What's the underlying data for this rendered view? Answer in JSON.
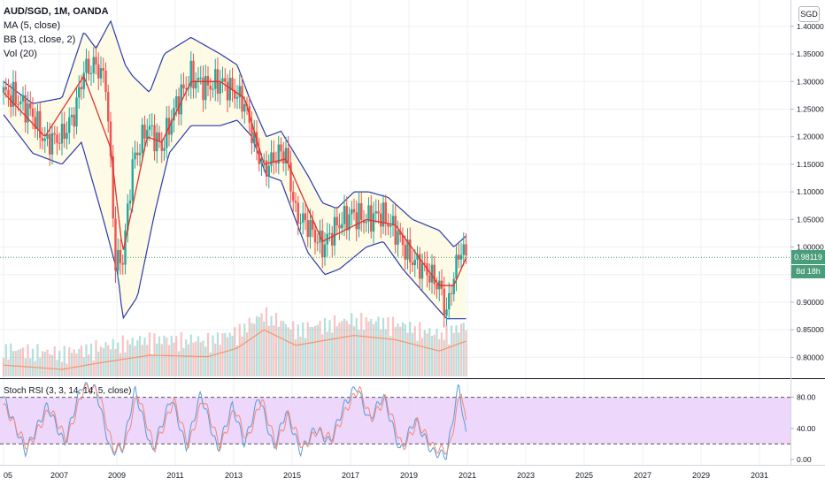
{
  "legend": {
    "symbol": "AUD/SGD, 1M, OANDA",
    "ma": "MA (5, close)",
    "bb": "BB (13, close, 2)",
    "vol": "Vol (20)"
  },
  "currency_badge": "SGD",
  "last_price": "0.98119",
  "countdown": "8d 18h",
  "rsi": {
    "label": "Stoch RSI (3, 3, 14, 14, 5, close)",
    "ticks": [
      "80.00",
      "40.00",
      "0.00"
    ]
  },
  "colors": {
    "up": "#26a69a",
    "down": "#ef5350",
    "bb_line": "#2b3ba8",
    "bb_fill": "#fdfae6",
    "ma_line": "#e0322b",
    "rsi_fill": "#e9cdfa",
    "stoch_k": "#5b9bd5",
    "stoch_d": "#f08a7a",
    "tag": "#4a9d7a"
  },
  "chart_data": {
    "type": "candlestick",
    "title": "AUD/SGD, 1M, OANDA",
    "x_ticks": [
      "05",
      "2007",
      "2009",
      "2011",
      "2013",
      "2015",
      "2017",
      "2019",
      "2021",
      "2023",
      "2025",
      "2027",
      "2029",
      "2031"
    ],
    "y_ticks": [
      "1.40000",
      "1.35000",
      "1.30000",
      "1.25000",
      "1.20000",
      "1.15000",
      "1.10000",
      "1.05000",
      "1.00000",
      "0.95000",
      "0.90000",
      "0.85000",
      "0.80000"
    ],
    "ylim": [
      0.775,
      1.435
    ],
    "price_path": [
      [
        "2005-01",
        1.28
      ],
      [
        "2005-06",
        1.27
      ],
      [
        "2006-01",
        1.24
      ],
      [
        "2006-06",
        1.19
      ],
      [
        "2007-01",
        1.2
      ],
      [
        "2007-06",
        1.24
      ],
      [
        "2007-10",
        1.32
      ],
      [
        "2008-03",
        1.33
      ],
      [
        "2008-07",
        1.3
      ],
      [
        "2008-09",
        1.15
      ],
      [
        "2008-11",
        0.97
      ],
      [
        "2009-02",
        0.98
      ],
      [
        "2009-06",
        1.15
      ],
      [
        "2009-12",
        1.22
      ],
      [
        "2010-06",
        1.18
      ],
      [
        "2010-12",
        1.26
      ],
      [
        "2011-06",
        1.31
      ],
      [
        "2011-12",
        1.29
      ],
      [
        "2012-06",
        1.3
      ],
      [
        "2012-12",
        1.28
      ],
      [
        "2013-04",
        1.26
      ],
      [
        "2013-08",
        1.19
      ],
      [
        "2013-12",
        1.14
      ],
      [
        "2014-06",
        1.17
      ],
      [
        "2014-09",
        1.17
      ],
      [
        "2015-01",
        1.06
      ],
      [
        "2015-06",
        1.04
      ],
      [
        "2015-12",
        1.0
      ],
      [
        "2016-06",
        1.04
      ],
      [
        "2016-12",
        1.06
      ],
      [
        "2017-06",
        1.05
      ],
      [
        "2017-12",
        1.06
      ],
      [
        "2018-06",
        1.03
      ],
      [
        "2018-12",
        0.98
      ],
      [
        "2019-06",
        0.96
      ],
      [
        "2019-12",
        0.93
      ],
      [
        "2020-03",
        0.88
      ],
      [
        "2020-06",
        0.95
      ],
      [
        "2020-09",
        1.0
      ],
      [
        "2020-11",
        0.98
      ]
    ],
    "bb_upper": [
      [
        "2005-01",
        1.3
      ],
      [
        "2006-01",
        1.26
      ],
      [
        "2007-01",
        1.27
      ],
      [
        "2007-10",
        1.39
      ],
      [
        "2008-03",
        1.36
      ],
      [
        "2008-09",
        1.41
      ],
      [
        "2009-03",
        1.33
      ],
      [
        "2009-06",
        1.31
      ],
      [
        "2010-01",
        1.28
      ],
      [
        "2010-07",
        1.35
      ],
      [
        "2011-06",
        1.38
      ],
      [
        "2012-06",
        1.35
      ],
      [
        "2013-01",
        1.33
      ],
      [
        "2013-06",
        1.27
      ],
      [
        "2014-01",
        1.2
      ],
      [
        "2014-07",
        1.21
      ],
      [
        "2015-06",
        1.13
      ],
      [
        "2015-12",
        1.08
      ],
      [
        "2016-06",
        1.07
      ],
      [
        "2017-01",
        1.1
      ],
      [
        "2017-07",
        1.1
      ],
      [
        "2018-03",
        1.09
      ],
      [
        "2019-01",
        1.05
      ],
      [
        "2019-12",
        1.03
      ],
      [
        "2020-06",
        1.0
      ],
      [
        "2020-11",
        1.02
      ]
    ],
    "bb_lower": [
      [
        "2005-01",
        1.24
      ],
      [
        "2006-01",
        1.17
      ],
      [
        "2007-01",
        1.15
      ],
      [
        "2007-09",
        1.19
      ],
      [
        "2008-06",
        1.05
      ],
      [
        "2008-12",
        0.95
      ],
      [
        "2009-02",
        0.87
      ],
      [
        "2009-08",
        0.91
      ],
      [
        "2010-03",
        1.06
      ],
      [
        "2010-09",
        1.17
      ],
      [
        "2011-06",
        1.22
      ],
      [
        "2012-06",
        1.22
      ],
      [
        "2013-01",
        1.23
      ],
      [
        "2013-07",
        1.2
      ],
      [
        "2014-01",
        1.13
      ],
      [
        "2014-07",
        1.12
      ],
      [
        "2015-06",
        0.99
      ],
      [
        "2016-01",
        0.95
      ],
      [
        "2016-07",
        0.96
      ],
      [
        "2017-06",
        1.0
      ],
      [
        "2018-01",
        1.01
      ],
      [
        "2018-09",
        0.96
      ],
      [
        "2019-09",
        0.9
      ],
      [
        "2020-03",
        0.87
      ],
      [
        "2020-11",
        0.87
      ]
    ],
    "ma": [
      [
        "2005-01",
        1.28
      ],
      [
        "2006-06",
        1.2
      ],
      [
        "2007-10",
        1.31
      ],
      [
        "2008-09",
        1.18
      ],
      [
        "2009-02",
        0.99
      ],
      [
        "2009-12",
        1.2
      ],
      [
        "2010-06",
        1.19
      ],
      [
        "2011-06",
        1.3
      ],
      [
        "2012-06",
        1.3
      ],
      [
        "2013-04",
        1.27
      ],
      [
        "2013-12",
        1.15
      ],
      [
        "2014-09",
        1.16
      ],
      [
        "2015-12",
        1.01
      ],
      [
        "2017-06",
        1.05
      ],
      [
        "2018-06",
        1.04
      ],
      [
        "2019-12",
        0.93
      ],
      [
        "2020-06",
        0.93
      ],
      [
        "2020-11",
        0.98
      ]
    ],
    "volume_line": [
      [
        "2005-01",
        0.08
      ],
      [
        "2007-01",
        0.05
      ],
      [
        "2008-06",
        0.1
      ],
      [
        "2010-01",
        0.15
      ],
      [
        "2012-01",
        0.14
      ],
      [
        "2013-01",
        0.2
      ],
      [
        "2013-12",
        0.33
      ],
      [
        "2015-01",
        0.22
      ],
      [
        "2017-01",
        0.29
      ],
      [
        "2018-06",
        0.26
      ],
      [
        "2019-12",
        0.18
      ],
      [
        "2020-11",
        0.25
      ]
    ],
    "stoch_k": [
      [
        "2005-01",
        80
      ],
      [
        "2005-10",
        10
      ],
      [
        "2006-07",
        70
      ],
      [
        "2007-02",
        20
      ],
      [
        "2007-09",
        95
      ],
      [
        "2008-03",
        90
      ],
      [
        "2008-09",
        10
      ],
      [
        "2009-02",
        15
      ],
      [
        "2009-07",
        90
      ],
      [
        "2010-02",
        10
      ],
      [
        "2010-10",
        80
      ],
      [
        "2011-04",
        15
      ],
      [
        "2011-10",
        85
      ],
      [
        "2012-05",
        12
      ],
      [
        "2012-11",
        70
      ],
      [
        "2013-04",
        20
      ],
      [
        "2013-10",
        82
      ],
      [
        "2014-04",
        14
      ],
      [
        "2014-09",
        62
      ],
      [
        "2015-03",
        10
      ],
      [
        "2015-09",
        40
      ],
      [
        "2016-03",
        22
      ],
      [
        "2016-09",
        70
      ],
      [
        "2017-02",
        95
      ],
      [
        "2017-07",
        50
      ],
      [
        "2018-01",
        82
      ],
      [
        "2018-08",
        10
      ],
      [
        "2019-02",
        52
      ],
      [
        "2019-09",
        10
      ],
      [
        "2020-03",
        5
      ],
      [
        "2020-08",
        96
      ],
      [
        "2020-11",
        30
      ]
    ],
    "stoch_d": [
      [
        "2005-01",
        70
      ],
      [
        "2005-11",
        15
      ],
      [
        "2006-08",
        66
      ],
      [
        "2007-03",
        25
      ],
      [
        "2007-10",
        92
      ],
      [
        "2008-04",
        88
      ],
      [
        "2008-10",
        14
      ],
      [
        "2009-03",
        18
      ],
      [
        "2009-08",
        86
      ],
      [
        "2010-03",
        14
      ],
      [
        "2010-11",
        76
      ],
      [
        "2011-05",
        18
      ],
      [
        "2011-11",
        80
      ],
      [
        "2012-06",
        16
      ],
      [
        "2012-12",
        66
      ],
      [
        "2013-05",
        24
      ],
      [
        "2013-11",
        78
      ],
      [
        "2014-05",
        18
      ],
      [
        "2014-10",
        58
      ],
      [
        "2015-04",
        14
      ],
      [
        "2015-10",
        38
      ],
      [
        "2016-04",
        26
      ],
      [
        "2016-10",
        66
      ],
      [
        "2017-03",
        92
      ],
      [
        "2017-08",
        52
      ],
      [
        "2018-02",
        78
      ],
      [
        "2018-09",
        14
      ],
      [
        "2019-03",
        48
      ],
      [
        "2019-10",
        14
      ],
      [
        "2020-04",
        12
      ],
      [
        "2020-09",
        92
      ],
      [
        "2020-11",
        45
      ]
    ],
    "rsi_levels": [
      80,
      20
    ],
    "last_date": "2020-11",
    "last_value": 0.98119
  }
}
